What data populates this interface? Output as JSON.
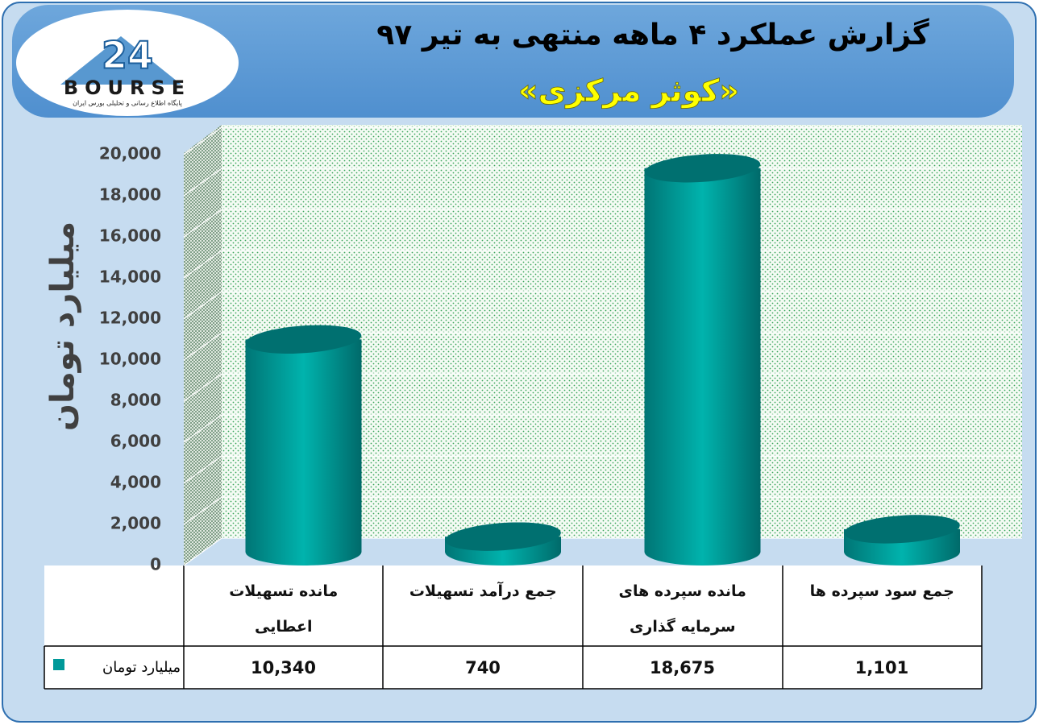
{
  "logo": {
    "text": "BOURSE",
    "number": "24",
    "tagline": "پایگاه اطلاع رسانی و تحلیلی بورس ایران"
  },
  "chart_data": {
    "type": "cylinder-bar",
    "title": "گزارش عملکرد ۴ ماهه منتهی به تیر ۹۷",
    "subtitle": "«کوثر مرکزی»",
    "y_label": "میلیارد تومان",
    "categories": [
      "مانده تسهیلات اعطایی",
      "جمع درآمد تسهیلات",
      "مانده سپرده های سرمایه گذاری",
      "جمع سود سپرده ها"
    ],
    "series": [
      {
        "name": "میلیارد تومان",
        "color": "#009999",
        "values": [
          10340,
          740,
          18675,
          1101
        ],
        "value_labels": [
          "10,340",
          "740",
          "18,675",
          "1,101"
        ]
      }
    ],
    "ylim": [
      0,
      20000
    ],
    "yticks": [
      0,
      {
        "value": 2000,
        "label": "2,000"
      },
      {
        "value": 4000,
        "label": "4,000"
      },
      {
        "value": 6000,
        "label": "6,000"
      },
      {
        "value": 8000,
        "label": "8,000"
      },
      {
        "value": 10000,
        "label": "10,000"
      },
      {
        "value": 12000,
        "label": "12,000"
      },
      {
        "value": 14000,
        "label": "14,000"
      },
      {
        "value": 16000,
        "label": "16,000"
      },
      {
        "value": 18000,
        "label": "18,000"
      },
      {
        "value": 20000,
        "label": "20,000"
      }
    ],
    "grid": true
  }
}
